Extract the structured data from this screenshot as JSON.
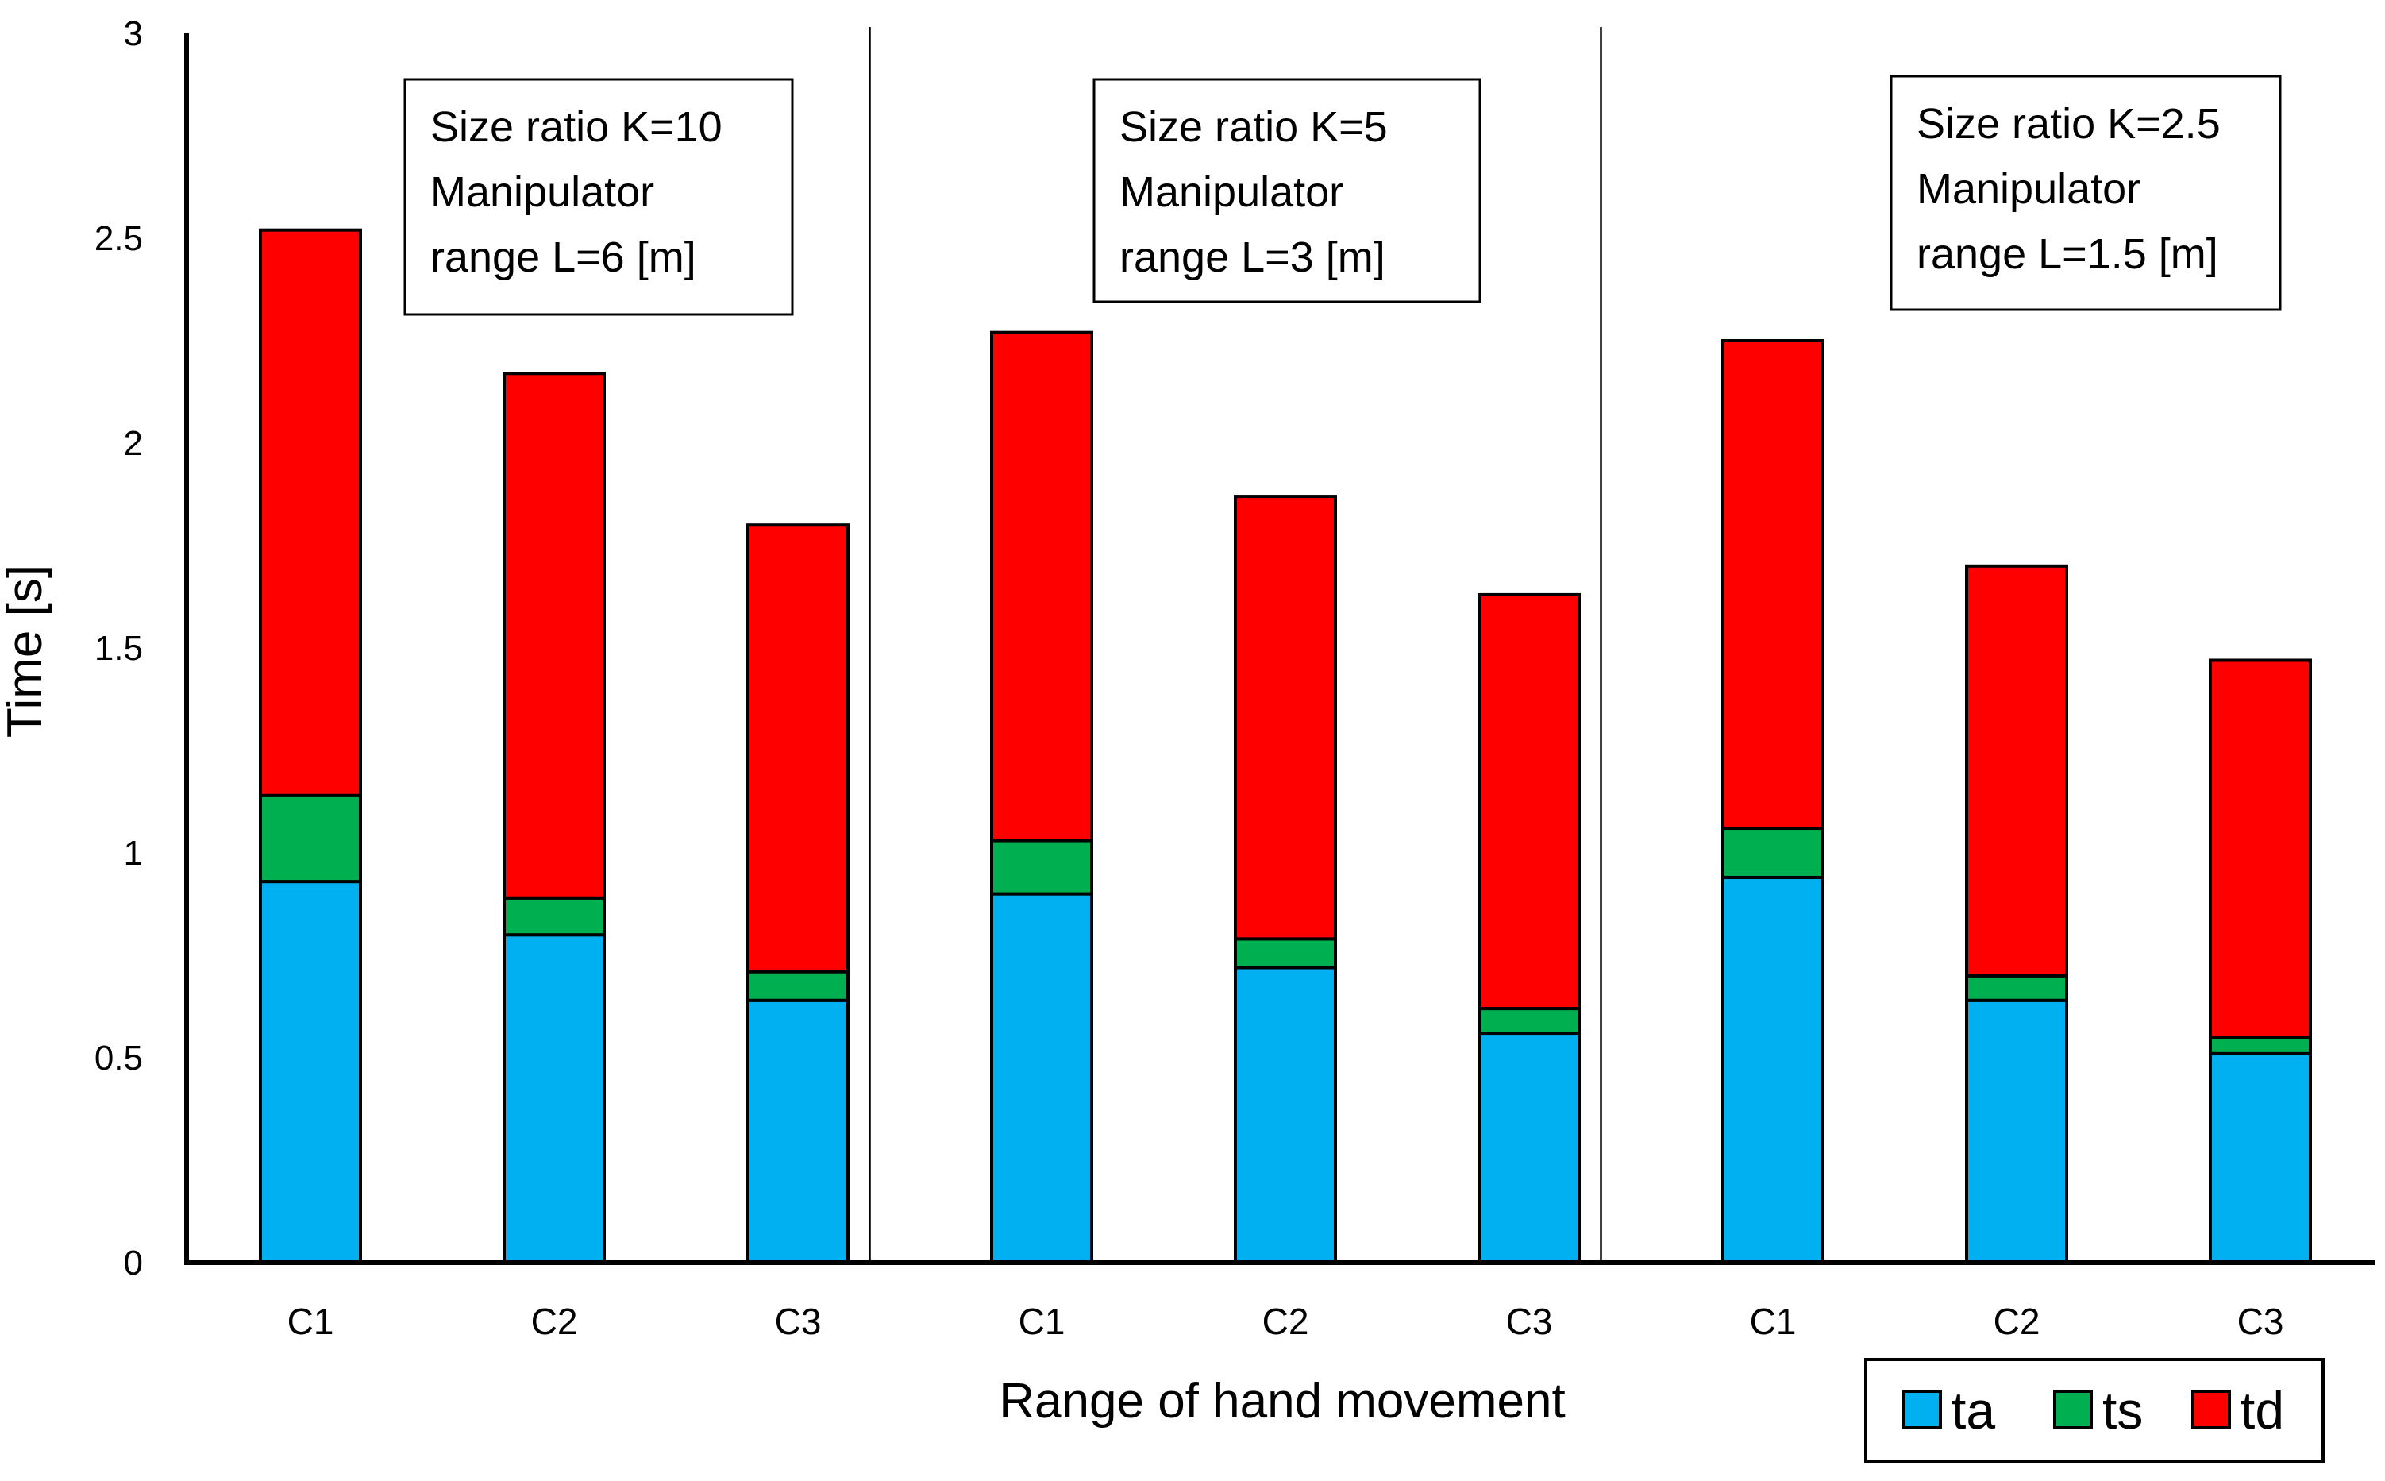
{
  "chart_data": {
    "type": "bar",
    "stacked": true,
    "title": "",
    "xlabel": "Range of hand movement",
    "ylabel": "Time [s]",
    "ylim": [
      0,
      3
    ],
    "yticks": [
      "0",
      "0.5",
      "1",
      "1.5",
      "2",
      "2.5",
      "3"
    ],
    "grid": false,
    "legend_position": "bottom-right",
    "categories": [
      "C1",
      "C2",
      "C3",
      "C1",
      "C2",
      "C3",
      "C1",
      "C2",
      "C3"
    ],
    "groups": [
      {
        "note_lines": [
          "Size ratio K=10",
          "Manipulator",
          "range L=6 [m]"
        ]
      },
      {
        "note_lines": [
          "Size ratio K=5",
          "Manipulator",
          "range L=3 [m]"
        ]
      },
      {
        "note_lines": [
          "Size ratio K=2.5",
          "Manipulator",
          "range L=1.5 [m]"
        ]
      }
    ],
    "series": [
      {
        "name": "ta",
        "color": "#00B0F0",
        "values": [
          0.93,
          0.8,
          0.64,
          0.9,
          0.72,
          0.56,
          0.94,
          0.64,
          0.51
        ]
      },
      {
        "name": "ts",
        "color": "#00B050",
        "values": [
          0.21,
          0.09,
          0.07,
          0.13,
          0.07,
          0.06,
          0.12,
          0.06,
          0.04
        ]
      },
      {
        "name": "td",
        "color": "#FF0000",
        "values": [
          1.38,
          1.28,
          1.09,
          1.24,
          1.08,
          1.01,
          1.19,
          1.0,
          0.92
        ]
      }
    ]
  }
}
